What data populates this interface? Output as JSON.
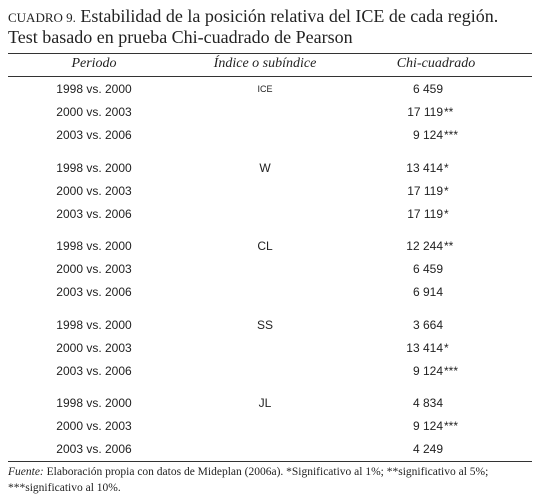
{
  "caption": {
    "label": "CUADRO 9.",
    "title": "Estabilidad de la posición relativa del ICE de cada región.",
    "subtitle": "Test basado en prueba Chi-cuadrado de Pearson"
  },
  "table": {
    "headers": [
      "Periodo",
      "Índice o subíndice",
      "Chi-cuadrado"
    ],
    "groups": [
      {
        "index": "ICE",
        "rows": [
          {
            "period": "1998 vs. 2000",
            "value": "6 459"
          },
          {
            "period": "2000 vs. 2003",
            "value": "17 119",
            "sig": "**"
          },
          {
            "period": "2003 vs. 2006",
            "value": "9 124",
            "sig": "***"
          }
        ]
      },
      {
        "index": "W",
        "rows": [
          {
            "period": "1998 vs. 2000",
            "value": "13 414",
            "sig": "*"
          },
          {
            "period": "2000 vs. 2003",
            "value": "17 119",
            "sig": "*"
          },
          {
            "period": "2003 vs. 2006",
            "value": "17 119",
            "sig": "*"
          }
        ]
      },
      {
        "index": "CL",
        "rows": [
          {
            "period": "1998 vs. 2000",
            "value": "12 244",
            "sig": "**"
          },
          {
            "period": "2000 vs. 2003",
            "value": "6 459"
          },
          {
            "period": "2003 vs. 2006",
            "value": "6 914"
          }
        ]
      },
      {
        "index": "SS",
        "rows": [
          {
            "period": "1998 vs. 2000",
            "value": "3 664"
          },
          {
            "period": "2000 vs. 2003",
            "value": "13 414",
            "sig": "*"
          },
          {
            "period": "2003 vs. 2006",
            "value": "9 124",
            "sig": "***"
          }
        ]
      },
      {
        "index": "JL",
        "rows": [
          {
            "period": "1998 vs. 2000",
            "value": "4 834"
          },
          {
            "period": "2000 vs. 2003",
            "value": "9 124",
            "sig": "***"
          },
          {
            "period": "2003 vs. 2006",
            "value": "4 249"
          }
        ]
      }
    ]
  },
  "footnote": {
    "label": "Fuente:",
    "text": "Elaboración propia con datos de Mideplan (2006a). *Significativo al 1%; **significativo al 5%; ***significativo al 10%."
  }
}
